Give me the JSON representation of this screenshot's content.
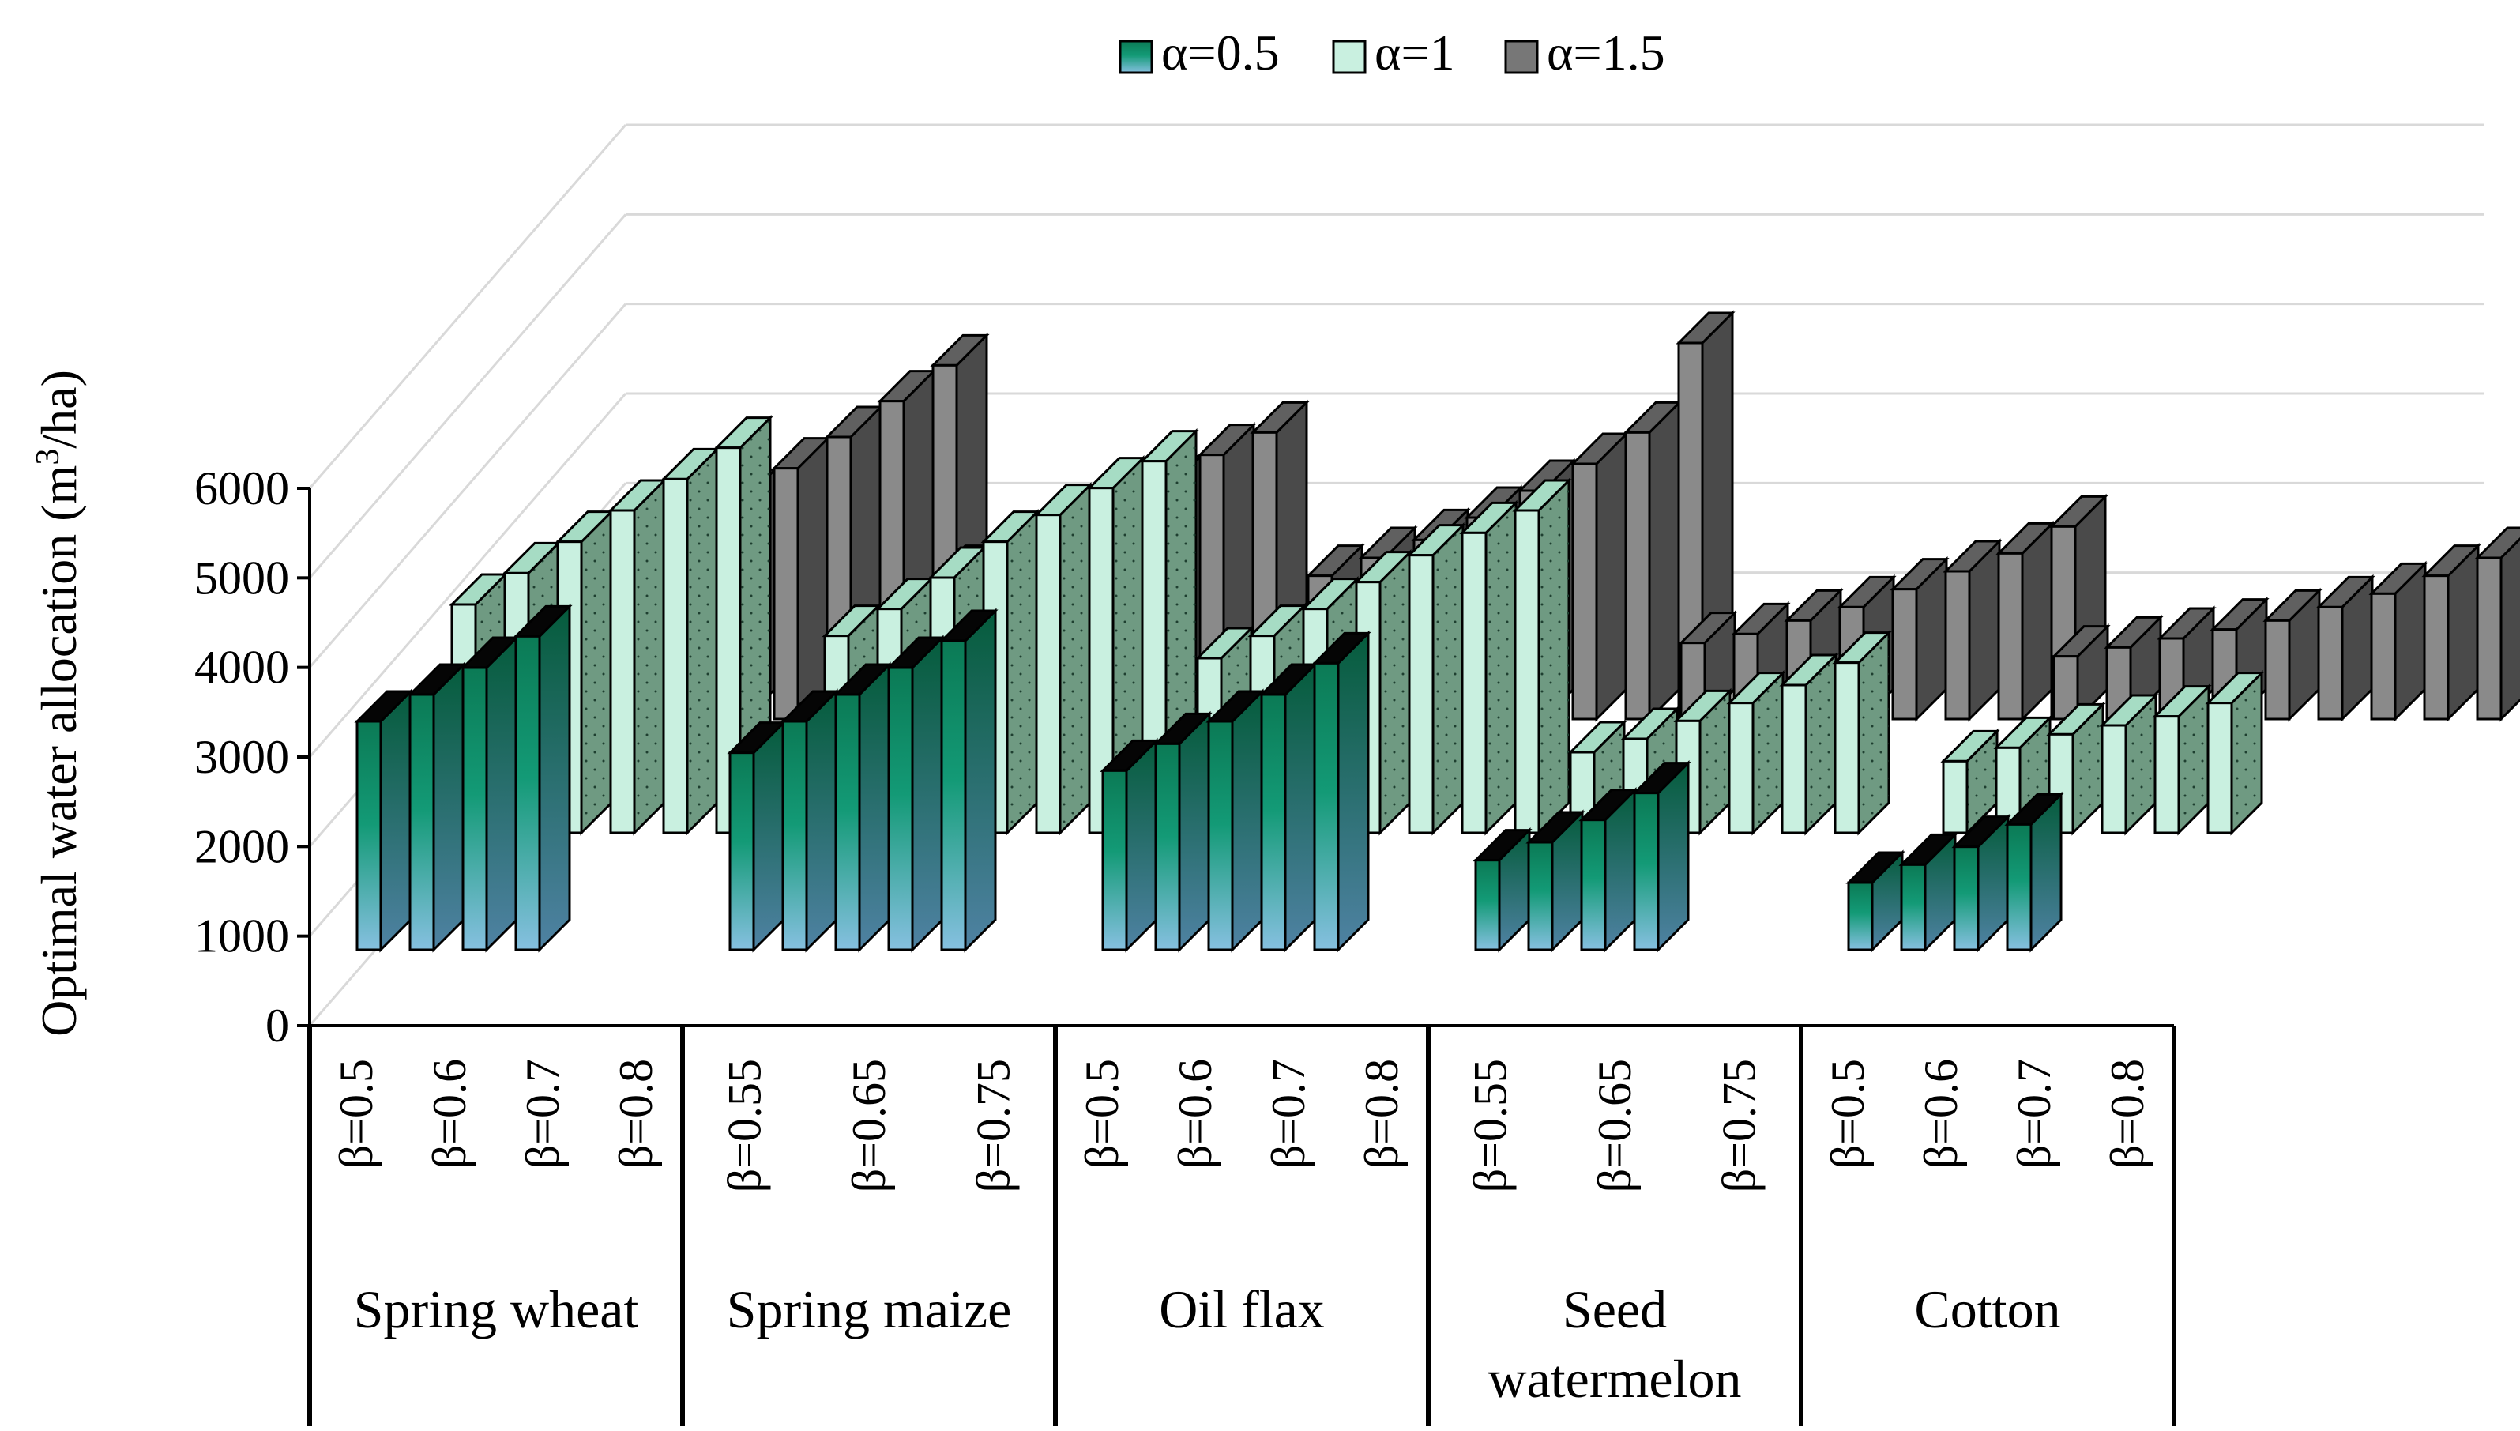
{
  "chart_data": {
    "type": "bar",
    "title": "",
    "xlabel": "",
    "ylabel": "Optimal water allocation (m³/ha)",
    "ylabel_parts": [
      "Optimal water allocation (m",
      "3",
      "/ha)"
    ],
    "ylim": [
      0,
      6000
    ],
    "yticks": [
      "0",
      "1000",
      "2000",
      "3000",
      "4000",
      "5000",
      "6000"
    ],
    "legend_position": "top-center",
    "legend": [
      "α=0.5",
      "α=1",
      "α=1.5"
    ],
    "colors": {
      "alpha_0_5_top": "#0b7a55",
      "alpha_0_5_bottom": "#86c0e0",
      "alpha_1_face": "#c9f0e0",
      "alpha_1_side": "#6f9a82",
      "alpha_1_5_face": "#8a8a8a",
      "alpha_1_5_side": "#4a4a4a",
      "gridline": "#d9d9d9"
    },
    "groups": [
      {
        "crop_label": [
          "Spring wheat"
        ],
        "beta_labels": [
          "β=0.5",
          "β=0.6",
          "β=0.7",
          "β=0.8"
        ],
        "series": [
          {
            "name": "α=0.5",
            "values": [
              2550,
              2850,
              3150,
              3500
            ]
          },
          {
            "name": "α=1",
            "values": [
              2550,
              2900,
              3250,
              3600,
              3950,
              4300
            ]
          },
          {
            "name": "α=1.5",
            "values": [
              1850,
              2000,
              2200,
              2450,
              2800,
              3150,
              3550,
              3950
            ]
          }
        ]
      },
      {
        "crop_label": [
          "Spring maize"
        ],
        "beta_labels": [
          "β=0.55",
          "β=0.65",
          "β=0.75"
        ],
        "series": [
          {
            "name": "α=0.5",
            "values": [
              2200,
              2550,
              2850,
              3150,
              3450
            ]
          },
          {
            "name": "α=1",
            "values": [
              2200,
              2500,
              2850,
              3250,
              3550,
              3850,
              4150
            ]
          },
          {
            "name": "α=1.5",
            "values": [
              1600,
              1800,
              2000,
              2250,
              2600,
              2950,
              3200
            ]
          }
        ]
      },
      {
        "crop_label": [
          "Oil flax"
        ],
        "beta_labels": [
          "β=0.5",
          "β=0.6",
          "β=0.7",
          "β=0.8"
        ],
        "series": [
          {
            "name": "α=0.5",
            "values": [
              2000,
              2300,
              2550,
              2850,
              3200
            ]
          },
          {
            "name": "α=1",
            "values": [
              1950,
              2200,
              2500,
              2800,
              3100,
              3350,
              3600
            ]
          },
          {
            "name": "α=1.5",
            "values": [
              1600,
              1800,
              2000,
              2250,
              2550,
              2850,
              3200,
              4200
            ]
          }
        ]
      },
      {
        "crop_label": [
          "Seed",
          "watermelon"
        ],
        "beta_labels": [
          "β=0.55",
          "β=0.65",
          "β=0.75"
        ],
        "series": [
          {
            "name": "α=0.5",
            "values": [
              1000,
              1200,
              1450,
              1750
            ]
          },
          {
            "name": "α=1",
            "values": [
              900,
              1050,
              1250,
              1450,
              1650,
              1900
            ]
          },
          {
            "name": "α=1.5",
            "values": [
              850,
              950,
              1100,
              1250,
              1450,
              1650,
              1850,
              2150
            ]
          }
        ]
      },
      {
        "crop_label": [
          "Cotton"
        ],
        "beta_labels": [
          "β=0.5",
          "β=0.6",
          "β=0.7",
          "β=0.8"
        ],
        "series": [
          {
            "name": "α=0.5",
            "values": [
              750,
              950,
              1150,
              1400
            ]
          },
          {
            "name": "α=1",
            "values": [
              800,
              950,
              1100,
              1200,
              1300,
              1450
            ]
          },
          {
            "name": "α=1.5",
            "values": [
              700,
              800,
              900,
              1000,
              1100,
              1250,
              1400,
              1600,
              1800
            ]
          }
        ]
      }
    ]
  }
}
